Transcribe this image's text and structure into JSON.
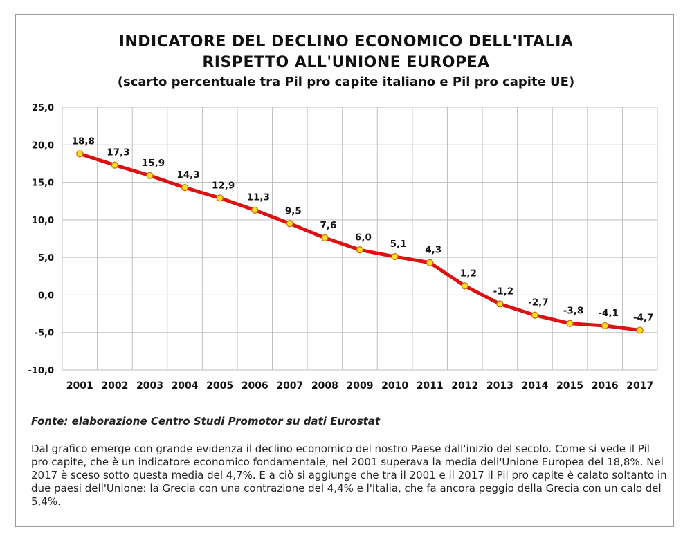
{
  "title_line1": "INDICATORE DEL DECLINO ECONOMICO DELL'ITALIA",
  "title_line2": "RISPETTO ALL'UNIONE EUROPEA",
  "subtitle": "(scarto percentuale tra Pil pro capite italiano e Pil pro capite UE)",
  "source": "Fonte: elaborazione Centro Studi Promotor su dati Eurostat",
  "description": "Dal grafico emerge con grande evidenza il declino economico del nostro Paese dall'inizio del secolo. Come si vede il Pil pro capite, che è un indicatore economico fondamentale, nel 2001 superava la media dell'Unione Europea del 18,8%. Nel 2017 è sceso sotto questa media del 4,7%. E a ciò si aggiunge che tra il 2001 e il 2017 il Pil pro capite è calato soltanto in due paesi dell'Unione: la Grecia con una contrazione del 4,4% e l'Italia, che fa ancora peggio della Grecia con un calo del 5,4%.",
  "chart_data": {
    "type": "line",
    "x": [
      "2001",
      "2002",
      "2003",
      "2004",
      "2005",
      "2006",
      "2007",
      "2008",
      "2009",
      "2010",
      "2011",
      "2012",
      "2013",
      "2014",
      "2015",
      "2016",
      "2017"
    ],
    "values": [
      18.8,
      17.3,
      15.9,
      14.3,
      12.9,
      11.3,
      9.5,
      7.6,
      6.0,
      5.1,
      4.3,
      1.2,
      -1.2,
      -2.7,
      -3.8,
      -4.1,
      -4.7
    ],
    "value_labels": [
      "18,8",
      "17,3",
      "15,9",
      "14,3",
      "12,9",
      "11,3",
      "9,5",
      "7,6",
      "6,0",
      "5,1",
      "4,3",
      "1,2",
      "-1,2",
      "-2,7",
      "-3,8",
      "-4,1",
      "-4,7"
    ],
    "yticks": [
      25,
      20,
      15,
      10,
      5,
      0,
      -5,
      -10
    ],
    "ytick_labels": [
      "25,0",
      "20,0",
      "15,0",
      "10,0",
      "5,0",
      "0,0",
      "-5,0",
      "-10,0"
    ],
    "ylim": [
      -10,
      25
    ],
    "grid": true,
    "line_color": "#dd1111",
    "marker_color": "#ffdd22",
    "grid_color": "#bfbfbf"
  }
}
